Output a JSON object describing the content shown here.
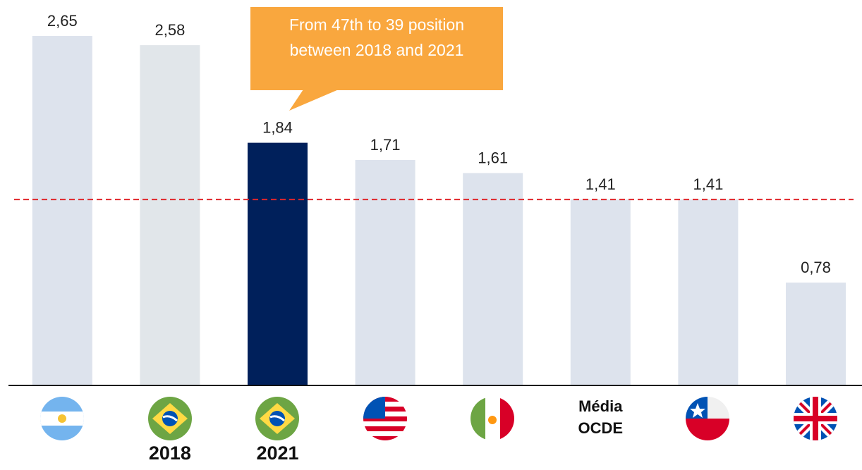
{
  "chart_data": {
    "type": "bar",
    "categories": [
      null,
      "2018",
      "2021",
      null,
      null,
      "Média OCDE",
      null,
      null
    ],
    "values": [
      2.65,
      2.58,
      1.84,
      1.71,
      1.61,
      1.41,
      1.41,
      0.78
    ],
    "value_labels": [
      "2,65",
      "2,58",
      "1,84",
      "1,71",
      "1,61",
      "1,41",
      "1,41",
      "0,78"
    ],
    "colors": [
      "#dde3ed",
      "#e1e6ea",
      "#00205b",
      "#dde3ed",
      "#dde3ed",
      "#dde3ed",
      "#dde3ed",
      "#dde3ed"
    ],
    "ylim": [
      0,
      2.65
    ],
    "reference_line": {
      "value": 1.41,
      "color": "#e0262b"
    },
    "annotation": "From 47th to 39 position between 2018 and 2021",
    "annotation_color": "#f9a73e"
  }
}
